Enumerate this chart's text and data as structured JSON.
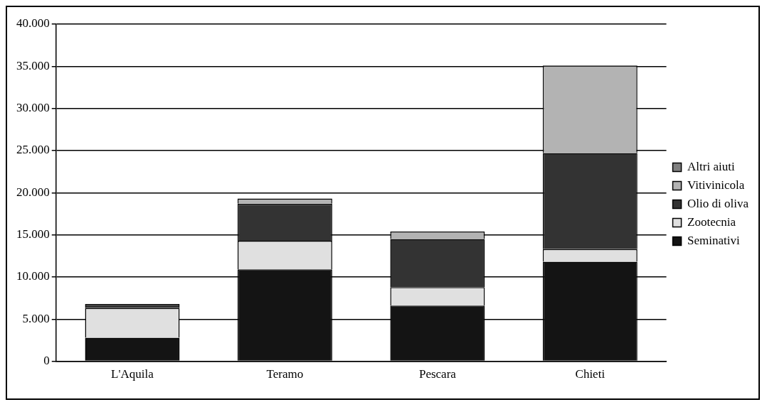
{
  "chart_data": {
    "type": "bar",
    "stacked": true,
    "categories": [
      "L'Aquila",
      "Teramo",
      "Pescara",
      "Chieti"
    ],
    "series": [
      {
        "name": "Seminativi",
        "color": "#141414",
        "values": [
          2800,
          10900,
          6600,
          11800
        ]
      },
      {
        "name": "Zootecnia",
        "color": "#e0e0e0",
        "values": [
          3500,
          3400,
          2200,
          1500
        ]
      },
      {
        "name": "Olio di oliva",
        "color": "#333333",
        "values": [
          500,
          4400,
          5700,
          11400
        ]
      },
      {
        "name": "Vitivinicola",
        "color": "#b3b3b3",
        "values": [
          0,
          600,
          900,
          10400
        ]
      },
      {
        "name": "Altri aiuti",
        "color": "#808080",
        "values": [
          0,
          0,
          0,
          0
        ]
      }
    ],
    "ylim": [
      0,
      40000
    ],
    "yticks": [
      {
        "value": 0,
        "label": "0"
      },
      {
        "value": 5000,
        "label": "5.000"
      },
      {
        "value": 10000,
        "label": "10.000"
      },
      {
        "value": 15000,
        "label": "15.000"
      },
      {
        "value": 20000,
        "label": "20.000"
      },
      {
        "value": 25000,
        "label": "25.000"
      },
      {
        "value": 30000,
        "label": "30.000"
      },
      {
        "value": 35000,
        "label": "35.000"
      },
      {
        "value": 40000,
        "label": "40.000"
      }
    ],
    "grid": "y",
    "legend": "right"
  }
}
